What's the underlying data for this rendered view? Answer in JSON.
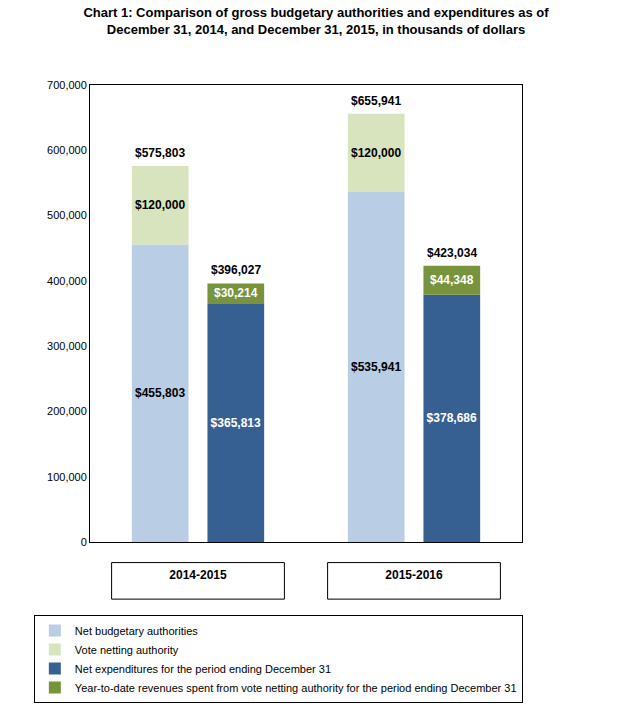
{
  "chart_data": {
    "type": "bar",
    "title": "Chart 1: Comparison of gross budgetary authorities and expenditures as of\nDecember 31, 2014, and December 31, 2015, in thousands of dollars",
    "categories": [
      "2014-2015",
      "2015-2016"
    ],
    "stacked": true,
    "data_labels": true,
    "grid": false,
    "legend": "bottom",
    "ylim": [
      0,
      700000
    ],
    "yticks": [
      0,
      {
        "value": 100000,
        "label": "100,000"
      },
      {
        "value": 200000,
        "label": "200,000"
      },
      {
        "value": 300000,
        "label": "300,000"
      },
      {
        "value": 400000,
        "label": "400,000"
      },
      {
        "value": 500000,
        "label": "500,000"
      },
      {
        "value": 600000,
        "label": "600,000"
      },
      {
        "value": 700000,
        "label": "700,000"
      }
    ],
    "stacks": [
      {
        "series": [
          {
            "name": "Net budgetary authorities",
            "color": "#b9cde5",
            "values": [
              455803,
              535941
            ],
            "value_labels": [
              "$455,803",
              "$535,941"
            ]
          },
          {
            "name": "Vote netting authority",
            "color": "#d7e4bd",
            "values": [
              120000,
              120000
            ],
            "value_labels": [
              "$120,000",
              "$120,000"
            ]
          }
        ],
        "totals": [
          575803,
          655941
        ],
        "total_labels": [
          "$575,803",
          "$655,941"
        ]
      },
      {
        "series": [
          {
            "name": "Net expenditures for the period ending December 31",
            "color": "#376092",
            "values": [
              365813,
              378686
            ],
            "value_labels": [
              "$365,813",
              "$378,686"
            ]
          },
          {
            "name": "Year-to-date revenues spent from vote netting authority for the period ending December 31",
            "color": "#77933c",
            "values": [
              30214,
              44348
            ],
            "value_labels": [
              "$30,214",
              "$44,348"
            ]
          }
        ],
        "totals": [
          396027,
          423034
        ],
        "total_labels": [
          "$396,027",
          "$423,034"
        ]
      }
    ]
  }
}
